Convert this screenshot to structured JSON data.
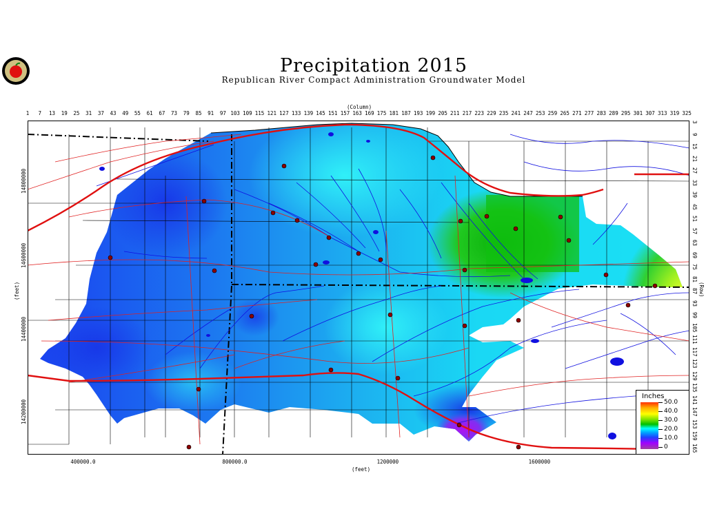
{
  "title": "Precipitation  2015",
  "subtitle": "Republican  River  Compact  Administration  Groundwater  Model",
  "top_axis_label": "(Column)",
  "bottom_axis_label": "(feet)",
  "left_axis_label": "(feet)",
  "right_axis_label": "(Row)",
  "column_ticks": [
    "1",
    "7",
    "13",
    "19",
    "25",
    "31",
    "37",
    "43",
    "49",
    "55",
    "61",
    "67",
    "73",
    "79",
    "85",
    "91",
    "97",
    "103",
    "109",
    "115",
    "121",
    "127",
    "133",
    "139",
    "145",
    "151",
    "157",
    "163",
    "169",
    "175",
    "181",
    "187",
    "193",
    "199",
    "205",
    "211",
    "217",
    "223",
    "229",
    "235",
    "241",
    "247",
    "253",
    "259",
    "265",
    "271",
    "277",
    "283",
    "289",
    "295",
    "301",
    "307",
    "313",
    "319",
    "325"
  ],
  "row_ticks": [
    "3",
    "9",
    "15",
    "21",
    "27",
    "33",
    "39",
    "45",
    "51",
    "57",
    "63",
    "69",
    "75",
    "81",
    "87",
    "93",
    "99",
    "105",
    "111",
    "117",
    "123",
    "129",
    "135",
    "141",
    "147",
    "153",
    "159",
    "165"
  ],
  "easting_ticks": [
    "400000.0",
    "800000.0",
    "1200000",
    "1600000"
  ],
  "northing_ticks": [
    "14800000",
    "14600000",
    "14400000",
    "14200000"
  ],
  "legend": {
    "title": "Inches",
    "values": [
      "50.0",
      "40.0",
      "30.0",
      "20.0",
      "10.0",
      "0"
    ]
  },
  "colors": {
    "blue_deep": "#1a3cf0",
    "blue_mid": "#1c8cf0",
    "cyan": "#1ce4f4",
    "green": "#10c010",
    "yellow": "#ffff40",
    "purple": "#a020f0",
    "roads": "#e02020",
    "rivers": "#1010e0"
  }
}
